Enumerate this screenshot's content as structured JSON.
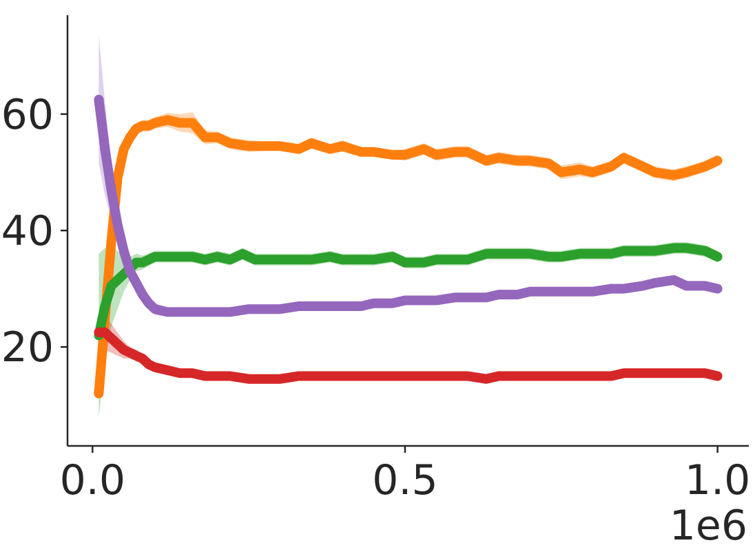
{
  "chart_data": {
    "type": "line",
    "title": "",
    "xlabel": "",
    "ylabel": "",
    "x_scale_label": "1e6",
    "xlim": [
      -0.04,
      1.05
    ],
    "ylim": [
      3,
      77
    ],
    "x_ticks": [
      0.0,
      0.5,
      1.0
    ],
    "x_tick_labels": [
      "0.0",
      "0.5",
      "1.0"
    ],
    "y_ticks": [
      20,
      40,
      60
    ],
    "y_tick_labels": [
      "20",
      "40",
      "60"
    ],
    "grid": false,
    "legend": "none",
    "series": [
      {
        "color": "#ff7f0e",
        "x": [
          0.01,
          0.02,
          0.03,
          0.04,
          0.05,
          0.06,
          0.07,
          0.08,
          0.09,
          0.1,
          0.12,
          0.14,
          0.16,
          0.18,
          0.2,
          0.22,
          0.25,
          0.28,
          0.3,
          0.33,
          0.35,
          0.38,
          0.4,
          0.43,
          0.45,
          0.48,
          0.5,
          0.53,
          0.55,
          0.58,
          0.6,
          0.63,
          0.65,
          0.68,
          0.7,
          0.73,
          0.75,
          0.78,
          0.8,
          0.83,
          0.85,
          0.88,
          0.9,
          0.93,
          0.95,
          0.98,
          1.0
        ],
        "y": [
          12,
          25,
          38,
          49,
          54,
          56,
          57.5,
          58,
          58,
          58.5,
          59,
          58.5,
          58.5,
          56,
          56,
          55,
          54.5,
          54.5,
          54.5,
          54,
          55,
          54,
          54.5,
          53.5,
          53.5,
          53,
          53,
          54,
          53,
          53.5,
          53.5,
          52,
          52.5,
          52,
          52,
          51.5,
          50,
          50.5,
          50,
          51,
          52.5,
          51,
          50,
          49.5,
          50,
          51,
          52
        ],
        "band": [
          0,
          3,
          3,
          2.5,
          1.5,
          1,
          1,
          1,
          1,
          1,
          1.2,
          1.5,
          1.8,
          1.2,
          1,
          1,
          1,
          0.8,
          0.8,
          0.8,
          1,
          0.8,
          1,
          0.8,
          0.8,
          0.8,
          1,
          1,
          1,
          1,
          1,
          1,
          1,
          1,
          1,
          1,
          1.2,
          1.2,
          1,
          1,
          1,
          1,
          1,
          1,
          1,
          1,
          1
        ]
      },
      {
        "color": "#2ca02c",
        "x": [
          0.01,
          0.02,
          0.03,
          0.04,
          0.05,
          0.06,
          0.07,
          0.08,
          0.1,
          0.12,
          0.14,
          0.16,
          0.18,
          0.2,
          0.22,
          0.24,
          0.26,
          0.28,
          0.3,
          0.33,
          0.35,
          0.38,
          0.4,
          0.43,
          0.45,
          0.48,
          0.5,
          0.53,
          0.55,
          0.58,
          0.6,
          0.63,
          0.65,
          0.68,
          0.7,
          0.73,
          0.75,
          0.78,
          0.8,
          0.83,
          0.85,
          0.88,
          0.9,
          0.93,
          0.95,
          0.98,
          1.0
        ],
        "y": [
          22,
          27,
          30.5,
          31.5,
          32.5,
          33.5,
          34.5,
          34.5,
          35.5,
          35.5,
          35.5,
          35.5,
          35,
          35.5,
          35,
          36,
          35,
          35,
          35,
          35,
          35,
          35.5,
          35,
          35,
          35,
          35.5,
          34.5,
          34.5,
          35,
          35,
          35,
          36,
          36,
          36,
          36,
          35.5,
          35.5,
          36,
          36,
          36,
          36.5,
          36.5,
          36.5,
          37,
          37,
          36.5,
          35.5
        ],
        "band": [
          14,
          10,
          7,
          5,
          3,
          2,
          1.5,
          1.2,
          1,
          1,
          1,
          1,
          1,
          1,
          1,
          1,
          1,
          1,
          1,
          1,
          1,
          1,
          1,
          1,
          1,
          1,
          1,
          1,
          1,
          1,
          1,
          1,
          1,
          1,
          1,
          1,
          1,
          1,
          1,
          1,
          1,
          1,
          1,
          1,
          1,
          1,
          1
        ]
      },
      {
        "color": "#9467bd",
        "x": [
          0.01,
          0.02,
          0.03,
          0.04,
          0.05,
          0.06,
          0.07,
          0.08,
          0.09,
          0.1,
          0.12,
          0.14,
          0.16,
          0.18,
          0.2,
          0.22,
          0.25,
          0.28,
          0.3,
          0.33,
          0.35,
          0.38,
          0.4,
          0.43,
          0.45,
          0.48,
          0.5,
          0.53,
          0.55,
          0.58,
          0.6,
          0.63,
          0.65,
          0.68,
          0.7,
          0.73,
          0.75,
          0.78,
          0.8,
          0.83,
          0.85,
          0.88,
          0.9,
          0.93,
          0.95,
          0.98,
          1.0
        ],
        "y": [
          62.5,
          54,
          47,
          41,
          36.5,
          33,
          31,
          29,
          27.5,
          26.5,
          26,
          26,
          26,
          26,
          26,
          26,
          26.5,
          26.5,
          26.5,
          27,
          27,
          27,
          27,
          27,
          27.5,
          27.5,
          28,
          28,
          28,
          28.5,
          28.5,
          28.5,
          29,
          29,
          29.5,
          29.5,
          29.5,
          29.5,
          29.5,
          30,
          30,
          30.5,
          31,
          31.5,
          30.5,
          30.5,
          30
        ],
        "band": [
          11,
          8,
          5,
          3,
          2,
          1.5,
          1,
          1,
          1,
          1,
          0.8,
          0.8,
          0.8,
          0.8,
          0.8,
          0.8,
          0.8,
          0.8,
          0.8,
          0.8,
          0.8,
          0.8,
          0.8,
          0.8,
          0.8,
          0.8,
          0.8,
          0.8,
          0.8,
          0.8,
          0.8,
          0.8,
          0.8,
          0.8,
          0.8,
          0.8,
          0.8,
          0.8,
          0.8,
          0.8,
          0.8,
          0.8,
          0.8,
          0.8,
          0.8,
          0.8,
          0.8
        ]
      },
      {
        "color": "#d62728",
        "x": [
          0.01,
          0.02,
          0.03,
          0.04,
          0.05,
          0.06,
          0.07,
          0.08,
          0.09,
          0.1,
          0.12,
          0.14,
          0.16,
          0.18,
          0.2,
          0.22,
          0.25,
          0.28,
          0.3,
          0.33,
          0.35,
          0.38,
          0.4,
          0.43,
          0.45,
          0.48,
          0.5,
          0.53,
          0.55,
          0.58,
          0.6,
          0.63,
          0.65,
          0.68,
          0.7,
          0.73,
          0.75,
          0.78,
          0.8,
          0.83,
          0.85,
          0.88,
          0.9,
          0.93,
          0.95,
          0.98,
          1.0
        ],
        "y": [
          22.5,
          22.5,
          21.5,
          20.5,
          19.5,
          19,
          18.5,
          18,
          17,
          16.5,
          16,
          15.5,
          15.5,
          15,
          15,
          15,
          14.5,
          14.5,
          14.5,
          15,
          15,
          15,
          15,
          15,
          15,
          15,
          15,
          15,
          15,
          15,
          15,
          14.5,
          15,
          15,
          15,
          15,
          15,
          15,
          15,
          15,
          15.5,
          15.5,
          15.5,
          15.5,
          15.5,
          15.5,
          15
        ],
        "band": [
          3,
          3,
          2.5,
          2,
          1.5,
          1,
          1,
          0.8,
          0.8,
          0.8,
          0.6,
          0.6,
          0.6,
          0.6,
          0.6,
          0.6,
          0.6,
          0.6,
          0.6,
          0.6,
          0.6,
          0.6,
          0.6,
          0.6,
          0.6,
          0.6,
          0.6,
          0.6,
          0.6,
          0.6,
          0.6,
          0.6,
          0.6,
          0.6,
          0.6,
          0.6,
          0.6,
          0.6,
          0.6,
          0.6,
          0.6,
          0.6,
          0.6,
          0.6,
          0.6,
          0.6,
          0.6
        ]
      }
    ]
  }
}
